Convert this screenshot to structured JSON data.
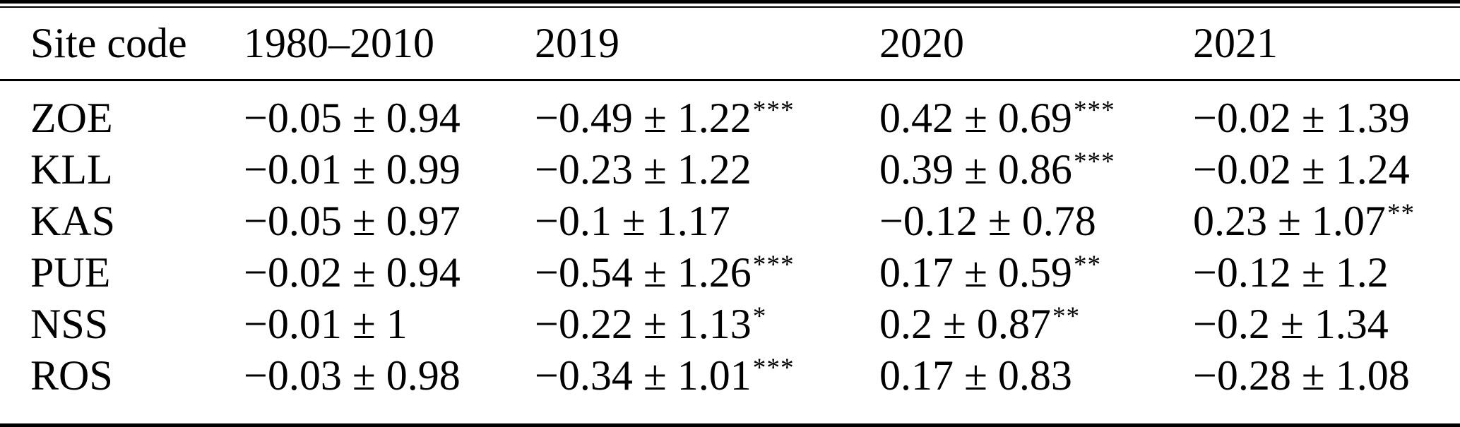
{
  "colors": {
    "text": "#000000",
    "background": "#ffffff",
    "rule": "#000000"
  },
  "table": {
    "columns": {
      "site_code": "Site code",
      "period_1980_2010": "1980–2010",
      "y2019": "2019",
      "y2020": "2020",
      "y2021": "2021"
    },
    "rows": [
      {
        "site": "ZOE",
        "cells": [
          {
            "value": "−0.05 ± 0.94",
            "stars": ""
          },
          {
            "value": "−0.49 ± 1.22",
            "stars": "***"
          },
          {
            "value": "0.42 ± 0.69",
            "stars": "***"
          },
          {
            "value": "−0.02 ± 1.39",
            "stars": ""
          }
        ]
      },
      {
        "site": "KLL",
        "cells": [
          {
            "value": "−0.01 ± 0.99",
            "stars": ""
          },
          {
            "value": "−0.23 ± 1.22",
            "stars": ""
          },
          {
            "value": "0.39 ± 0.86",
            "stars": "***"
          },
          {
            "value": "−0.02 ± 1.24",
            "stars": ""
          }
        ]
      },
      {
        "site": "KAS",
        "cells": [
          {
            "value": "−0.05 ± 0.97",
            "stars": ""
          },
          {
            "value": "−0.1 ± 1.17",
            "stars": ""
          },
          {
            "value": "−0.12 ± 0.78",
            "stars": ""
          },
          {
            "value": "0.23 ± 1.07",
            "stars": "**"
          }
        ]
      },
      {
        "site": "PUE",
        "cells": [
          {
            "value": "−0.02 ± 0.94",
            "stars": ""
          },
          {
            "value": "−0.54 ± 1.26",
            "stars": "***"
          },
          {
            "value": "0.17 ± 0.59",
            "stars": "**"
          },
          {
            "value": "−0.12 ± 1.2",
            "stars": ""
          }
        ]
      },
      {
        "site": "NSS",
        "cells": [
          {
            "value": "−0.01 ± 1",
            "stars": ""
          },
          {
            "value": "−0.22 ± 1.13",
            "stars": "*"
          },
          {
            "value": "0.2 ± 0.87",
            "stars": "**"
          },
          {
            "value": "−0.2 ± 1.34",
            "stars": ""
          }
        ]
      },
      {
        "site": "ROS",
        "cells": [
          {
            "value": "−0.03 ± 0.98",
            "stars": ""
          },
          {
            "value": "−0.34 ± 1.01",
            "stars": "***"
          },
          {
            "value": "0.17 ± 0.83",
            "stars": ""
          },
          {
            "value": "−0.28 ± 1.08",
            "stars": ""
          }
        ]
      }
    ]
  }
}
